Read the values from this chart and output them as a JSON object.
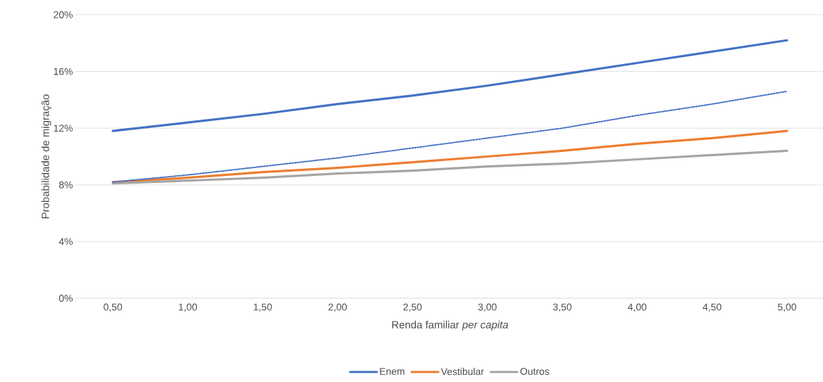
{
  "chart_data": {
    "type": "line",
    "xlabel": "Renda familiar *per capita*",
    "ylabel": "Probabilidade de migração",
    "categories": [
      "0,50",
      "1,00",
      "1,50",
      "2,00",
      "2,50",
      "3,00",
      "3,50",
      "4,00",
      "4,50",
      "5,00"
    ],
    "series": [
      {
        "name": "Enem",
        "color": "#4472c4",
        "values": [
          11.8,
          12.4,
          13.0,
          13.7,
          14.3,
          15.0,
          15.8,
          16.6,
          17.4,
          18.2
        ]
      },
      {
        "name": "Vestibular",
        "color": "#ed7d31",
        "values": [
          8.2,
          8.5,
          8.9,
          9.2,
          9.6,
          10.0,
          10.4,
          10.9,
          11.3,
          11.8
        ]
      },
      {
        "name": "Outros",
        "color": "#a5a5a5",
        "values": [
          8.1,
          8.3,
          8.5,
          8.8,
          9.0,
          9.3,
          9.5,
          9.8,
          10.1,
          10.4
        ]
      },
      {
        "color": "#4472c4",
        "line_style": "dotted",
        "values": [
          8.2,
          8.7,
          9.3,
          9.9,
          10.6,
          11.3,
          12.0,
          12.9,
          13.7,
          14.6
        ]
      }
    ],
    "ylim": [
      0,
      20
    ],
    "yticks": [
      {
        "value": 0,
        "label": "0%"
      },
      {
        "value": 4,
        "label": "4%"
      },
      {
        "value": 8,
        "label": "8%"
      },
      {
        "value": 12,
        "label": "12%"
      },
      {
        "value": 16,
        "label": "16%"
      },
      {
        "value": 20,
        "label": "20%"
      }
    ],
    "grid": "y",
    "legend": "bottom"
  }
}
